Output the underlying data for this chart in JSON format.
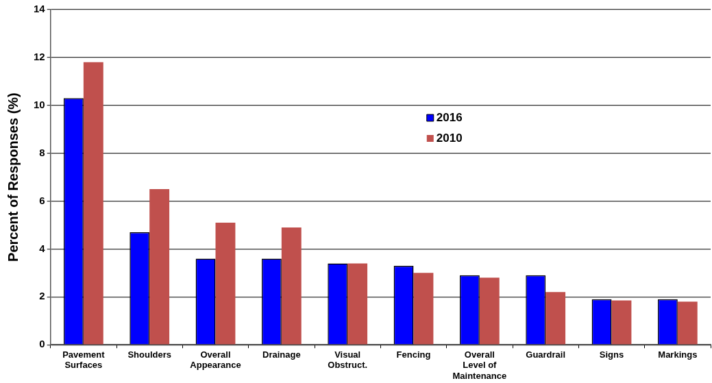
{
  "chart_data": {
    "type": "bar",
    "ylabel": "Percent of Responses (%)",
    "categories": [
      "Pavement Surfaces",
      "Shoulders",
      "Overall Appearance",
      "Drainage",
      "Visual Obstruct.",
      "Fencing",
      "Overall Level of Maintenance",
      "Guardrail",
      "Signs",
      "Markings"
    ],
    "series": [
      {
        "name": "2016",
        "color": "#0000ff",
        "values": [
          10.3,
          4.7,
          3.6,
          3.6,
          3.4,
          3.3,
          2.9,
          2.9,
          1.9,
          1.9
        ]
      },
      {
        "name": "2010",
        "color": "#c0504d",
        "values": [
          11.8,
          6.5,
          5.1,
          4.9,
          3.4,
          3.0,
          2.8,
          2.2,
          1.85,
          1.8
        ]
      }
    ],
    "ylim": [
      0,
      14
    ],
    "yticks": [
      0,
      2,
      4,
      6,
      8,
      10,
      12,
      14
    ],
    "grid": "y",
    "legend": "top"
  }
}
